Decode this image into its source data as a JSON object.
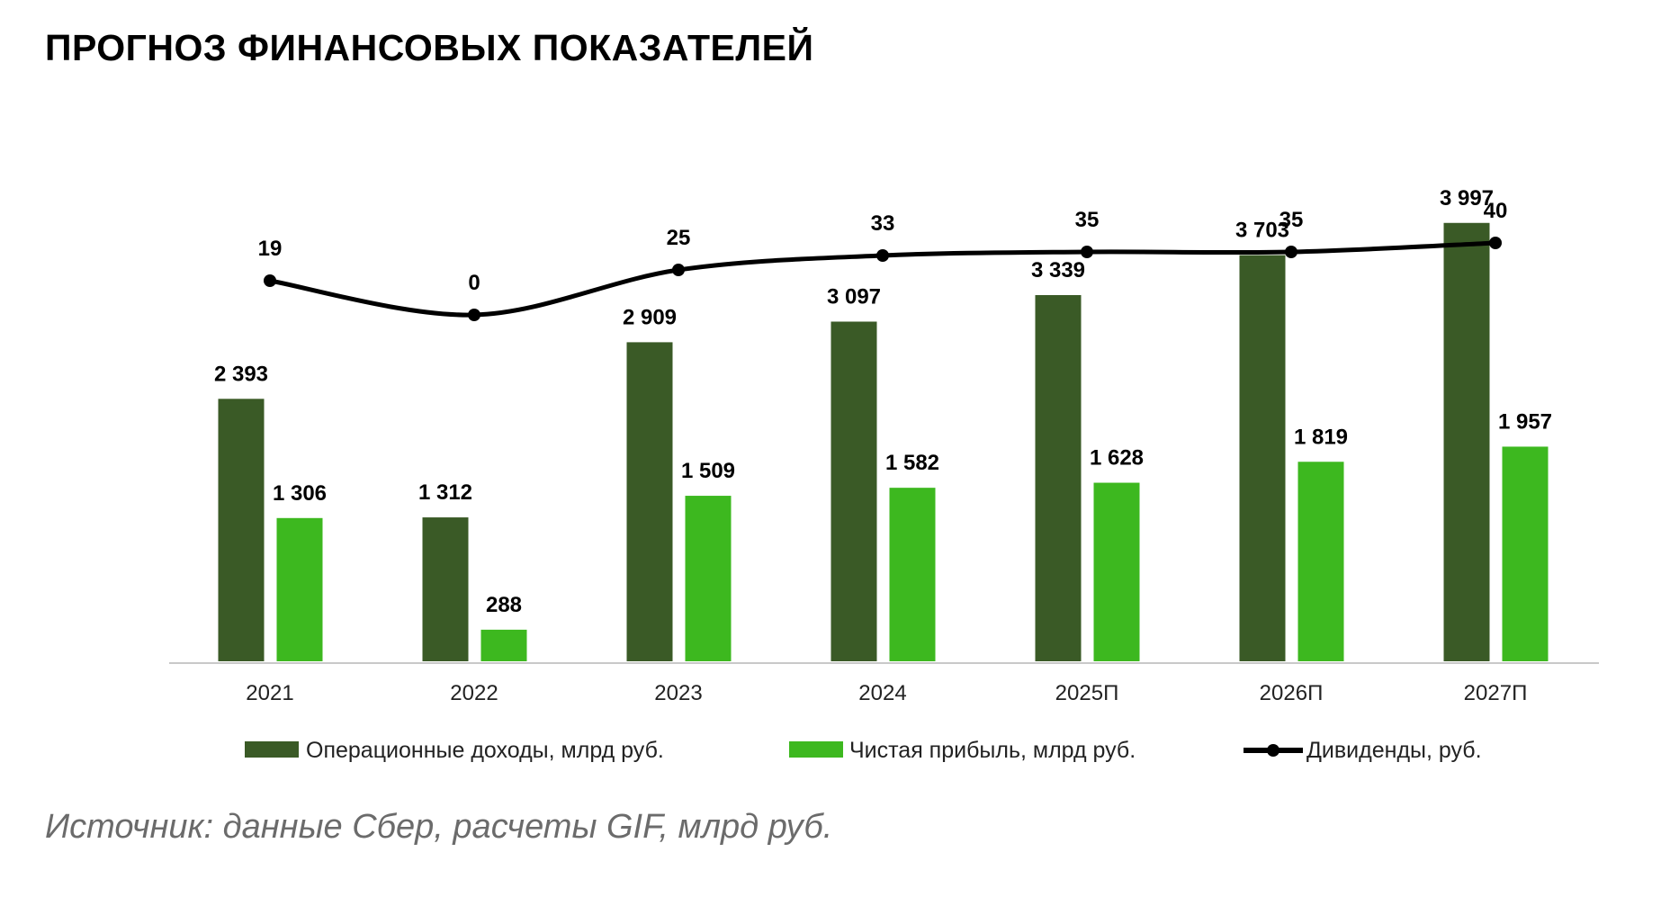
{
  "title": "ПРОГНОЗ ФИНАНСОВЫХ ПОКАЗАТЕЛЕЙ",
  "source": "Источник: данные Сбер, расчеты GIF, млрд руб.",
  "colors": {
    "operating": "#3a5a26",
    "net": "#3db81f",
    "dividends": "#000000"
  },
  "chart_data": {
    "type": "bar",
    "categories": [
      "2021",
      "2022",
      "2023",
      "2024",
      "2025П",
      "2026П",
      "2027П"
    ],
    "series": [
      {
        "name": "Операционные доходы, млрд руб.",
        "type": "bar",
        "values": [
          2393,
          1312,
          2909,
          3097,
          3339,
          3703,
          3997
        ],
        "labels": [
          "2 393",
          "1 312",
          "2 909",
          "3 097",
          "3 339",
          "3 703",
          "3 997"
        ]
      },
      {
        "name": "Чистая прибыль, млрд руб.",
        "type": "bar",
        "values": [
          1306,
          288,
          1509,
          1582,
          1628,
          1819,
          1957
        ],
        "labels": [
          "1 306",
          "288",
          "1 509",
          "1 582",
          "1 628",
          "1 819",
          "1 957"
        ]
      },
      {
        "name": "Дивиденды, руб.",
        "type": "line",
        "values": [
          19,
          0,
          25,
          33,
          35,
          35,
          40
        ],
        "labels": [
          "19",
          "0",
          "25",
          "33",
          "35",
          "35",
          "40"
        ]
      }
    ],
    "grid": false,
    "legend_position": "bottom"
  }
}
